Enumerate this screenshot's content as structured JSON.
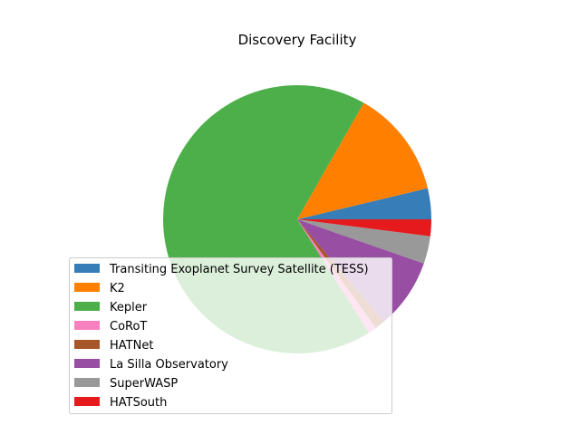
{
  "chart_data": {
    "type": "pie",
    "title": "Discovery Facility",
    "legend_placement": "lower-left",
    "start_angle_deg": 0,
    "direction": "counterclockwise",
    "series": [
      {
        "name": "Transiting Exoplanet Survey Satellite (TESS)",
        "value": 3.7,
        "color": "#377eb8"
      },
      {
        "name": "K2",
        "value": 12.9,
        "color": "#ff7f00"
      },
      {
        "name": "Kepler",
        "value": 66.7,
        "color": "#4daf4a"
      },
      {
        "name": "CoRoT",
        "value": 1.0,
        "color": "#f781bf"
      },
      {
        "name": "HATNet",
        "value": 1.2,
        "color": "#a65628"
      },
      {
        "name": "La Silla Observatory",
        "value": 8.4,
        "color": "#984ea3"
      },
      {
        "name": "SuperWASP",
        "value": 3.3,
        "color": "#999999"
      },
      {
        "name": "HATSouth",
        "value": 2.0,
        "color": "#e41a1c"
      }
    ]
  }
}
